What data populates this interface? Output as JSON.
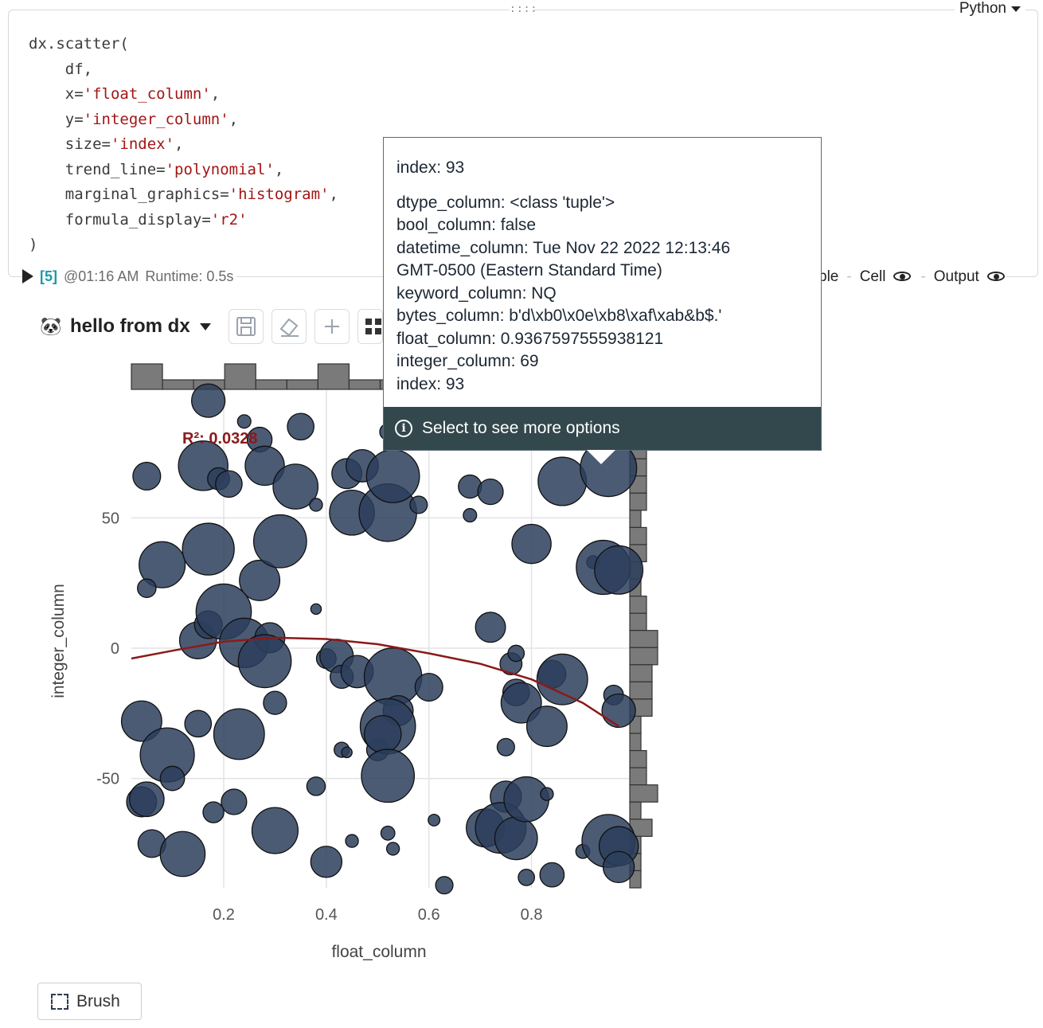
{
  "cell": {
    "language": "Python",
    "drag_handle": "::::",
    "code_lines": [
      [
        {
          "t": "dx.scatter("
        }
      ],
      [
        {
          "t": "    df,"
        }
      ],
      [
        {
          "t": "    x="
        },
        {
          "s": "'float_column'"
        },
        {
          "t": ","
        }
      ],
      [
        {
          "t": "    y="
        },
        {
          "s": "'integer_column'"
        },
        {
          "t": ","
        }
      ],
      [
        {
          "t": "    size="
        },
        {
          "s": "'index'"
        },
        {
          "t": ","
        }
      ],
      [
        {
          "t": "    trend_line="
        },
        {
          "s": "'polynomial'"
        },
        {
          "t": ","
        }
      ],
      [
        {
          "t": "    marginal_graphics="
        },
        {
          "s": "'histogram'"
        },
        {
          "t": ","
        }
      ],
      [
        {
          "t": "    formula_display="
        },
        {
          "s": "'r2'"
        }
      ],
      [
        {
          "t": ")"
        }
      ]
    ],
    "exec_count": "[5]",
    "exec_time": "@01:16 AM",
    "runtime": "Runtime: 0.5s",
    "right_partial": "ble",
    "cell_label": "Cell",
    "output_label": "Output"
  },
  "dx_toolbar": {
    "title": "hello from dx",
    "panda_icon": "🐼"
  },
  "tooltip": {
    "header": "index: 93",
    "lines": [
      "dtype_column: <class 'tuple'>",
      "bool_column: false",
      "datetime_column: Tue Nov 22 2022 12:13:46",
      "GMT-0500 (Eastern Standard Time)",
      "keyword_column: NQ",
      "bytes_column: b'd\\xb0\\x0e\\xb8\\xaf\\xab&b$.'",
      "float_column: 0.9367597555938121",
      "integer_column: 69",
      "index: 93"
    ],
    "footer": "Select to see more options"
  },
  "brush_label": "Brush",
  "colors": {
    "point_fill": "#2c3e5c",
    "trend": "#8b1a1a",
    "histogram": "#777777"
  },
  "chart_data": {
    "type": "scatter",
    "xlabel": "float_column",
    "ylabel": "integer_column",
    "xlim": [
      0.02,
      0.99
    ],
    "ylim": [
      -92,
      99
    ],
    "xticks": [
      "0.2",
      "0.4",
      "0.6",
      "0.8"
    ],
    "yticks": [
      "50",
      "0",
      "-50"
    ],
    "r2_annotation": "R²: 0.0328",
    "trend": {
      "x": [
        0.02,
        0.1,
        0.2,
        0.3,
        0.4,
        0.5,
        0.6,
        0.7,
        0.8,
        0.9,
        0.97
      ],
      "y": [
        -4,
        -1,
        2.5,
        4,
        3.5,
        1.5,
        -2,
        -6,
        -12,
        -21,
        -30
      ]
    },
    "points": [
      {
        "x": 0.17,
        "y": 95,
        "s": 50
      },
      {
        "x": 0.24,
        "y": 87,
        "s": 15
      },
      {
        "x": 0.27,
        "y": 80,
        "s": 35
      },
      {
        "x": 0.35,
        "y": 85,
        "s": 38
      },
      {
        "x": 0.52,
        "y": 83,
        "s": 20
      },
      {
        "x": 0.05,
        "y": 66,
        "s": 40
      },
      {
        "x": 0.16,
        "y": 70,
        "s": 78
      },
      {
        "x": 0.19,
        "y": 65,
        "s": 30
      },
      {
        "x": 0.21,
        "y": 63,
        "s": 38
      },
      {
        "x": 0.28,
        "y": 70,
        "s": 60
      },
      {
        "x": 0.34,
        "y": 62,
        "s": 70
      },
      {
        "x": 0.38,
        "y": 55,
        "s": 14
      },
      {
        "x": 0.44,
        "y": 67,
        "s": 44
      },
      {
        "x": 0.47,
        "y": 70,
        "s": 48
      },
      {
        "x": 0.45,
        "y": 52,
        "s": 70
      },
      {
        "x": 0.52,
        "y": 52,
        "s": 92
      },
      {
        "x": 0.53,
        "y": 66,
        "s": 84
      },
      {
        "x": 0.58,
        "y": 55,
        "s": 22
      },
      {
        "x": 0.68,
        "y": 62,
        "s": 32
      },
      {
        "x": 0.72,
        "y": 60,
        "s": 36
      },
      {
        "x": 0.68,
        "y": 51,
        "s": 15
      },
      {
        "x": 0.86,
        "y": 64,
        "s": 76
      },
      {
        "x": 0.95,
        "y": 69,
        "s": 90
      },
      {
        "x": 0.08,
        "y": 32,
        "s": 72
      },
      {
        "x": 0.05,
        "y": 23,
        "s": 24
      },
      {
        "x": 0.17,
        "y": 38,
        "s": 82
      },
      {
        "x": 0.27,
        "y": 26,
        "s": 62
      },
      {
        "x": 0.31,
        "y": 41,
        "s": 84
      },
      {
        "x": 0.8,
        "y": 40,
        "s": 60
      },
      {
        "x": 0.92,
        "y": 33,
        "s": 14
      },
      {
        "x": 0.94,
        "y": 31,
        "s": 86
      },
      {
        "x": 0.97,
        "y": 30,
        "s": 76
      },
      {
        "x": 0.38,
        "y": 15,
        "s": 10
      },
      {
        "x": 0.15,
        "y": 3,
        "s": 56
      },
      {
        "x": 0.17,
        "y": 9,
        "s": 40
      },
      {
        "x": 0.2,
        "y": 14,
        "s": 88
      },
      {
        "x": 0.24,
        "y": 2,
        "s": 78
      },
      {
        "x": 0.29,
        "y": 4,
        "s": 44
      },
      {
        "x": 0.28,
        "y": -5,
        "s": 84
      },
      {
        "x": 0.4,
        "y": -4,
        "s": 26
      },
      {
        "x": 0.42,
        "y": -3,
        "s": 50
      },
      {
        "x": 0.43,
        "y": -11,
        "s": 32
      },
      {
        "x": 0.46,
        "y": -9,
        "s": 48
      },
      {
        "x": 0.53,
        "y": -11,
        "s": 92
      },
      {
        "x": 0.6,
        "y": -15,
        "s": 40
      },
      {
        "x": 0.72,
        "y": 8,
        "s": 44
      },
      {
        "x": 0.76,
        "y": -6,
        "s": 30
      },
      {
        "x": 0.77,
        "y": -2,
        "s": 20
      },
      {
        "x": 0.77,
        "y": -17,
        "s": 38
      },
      {
        "x": 0.78,
        "y": -21,
        "s": 62
      },
      {
        "x": 0.84,
        "y": -10,
        "s": 40
      },
      {
        "x": 0.86,
        "y": -12,
        "s": 80
      },
      {
        "x": 0.96,
        "y": -18,
        "s": 26
      },
      {
        "x": 0.97,
        "y": -24,
        "s": 50
      },
      {
        "x": 0.83,
        "y": -30,
        "s": 62
      },
      {
        "x": 0.3,
        "y": -21,
        "s": 32
      },
      {
        "x": 0.04,
        "y": -28,
        "s": 62
      },
      {
        "x": 0.09,
        "y": -41,
        "s": 86
      },
      {
        "x": 0.1,
        "y": -50,
        "s": 34
      },
      {
        "x": 0.15,
        "y": -29,
        "s": 38
      },
      {
        "x": 0.23,
        "y": -33,
        "s": 80
      },
      {
        "x": 0.38,
        "y": -53,
        "s": 24
      },
      {
        "x": 0.43,
        "y": -39,
        "s": 18
      },
      {
        "x": 0.44,
        "y": -40,
        "s": 10
      },
      {
        "x": 0.5,
        "y": -39,
        "s": 30
      },
      {
        "x": 0.54,
        "y": -24,
        "s": 44
      },
      {
        "x": 0.52,
        "y": -30,
        "s": 88
      },
      {
        "x": 0.51,
        "y": -33,
        "s": 56
      },
      {
        "x": 0.52,
        "y": -49,
        "s": 84
      },
      {
        "x": 0.04,
        "y": -59,
        "s": 44
      },
      {
        "x": 0.05,
        "y": -58,
        "s": 52
      },
      {
        "x": 0.06,
        "y": -75,
        "s": 40
      },
      {
        "x": 0.12,
        "y": -79,
        "s": 70
      },
      {
        "x": 0.18,
        "y": -63,
        "s": 28
      },
      {
        "x": 0.22,
        "y": -59,
        "s": 36
      },
      {
        "x": 0.3,
        "y": -70,
        "s": 72
      },
      {
        "x": 0.4,
        "y": -82,
        "s": 46
      },
      {
        "x": 0.45,
        "y": -74,
        "s": 14
      },
      {
        "x": 0.52,
        "y": -71,
        "s": 16
      },
      {
        "x": 0.53,
        "y": -77,
        "s": 14
      },
      {
        "x": 0.61,
        "y": -66,
        "s": 12
      },
      {
        "x": 0.63,
        "y": -91,
        "s": 22
      },
      {
        "x": 0.71,
        "y": -69,
        "s": 58
      },
      {
        "x": 0.75,
        "y": -57,
        "s": 46
      },
      {
        "x": 0.74,
        "y": -69,
        "s": 80
      },
      {
        "x": 0.77,
        "y": -73,
        "s": 66
      },
      {
        "x": 0.79,
        "y": -58,
        "s": 70
      },
      {
        "x": 0.79,
        "y": -88,
        "s": 20
      },
      {
        "x": 0.83,
        "y": -56,
        "s": 14
      },
      {
        "x": 0.84,
        "y": -87,
        "s": 34
      },
      {
        "x": 0.9,
        "y": -78,
        "s": 16
      },
      {
        "x": 0.95,
        "y": -74,
        "s": 84
      },
      {
        "x": 0.97,
        "y": -76,
        "s": 60
      },
      {
        "x": 0.97,
        "y": -84,
        "s": 46
      },
      {
        "x": 0.75,
        "y": -38,
        "s": 22
      }
    ],
    "hist_x": [
      8,
      3,
      3,
      8,
      3,
      3,
      8,
      3,
      3,
      3,
      3,
      3,
      9,
      3,
      3,
      3
    ],
    "hist_y": [
      2,
      3,
      5,
      3,
      3,
      3,
      3,
      2,
      3,
      3,
      2,
      2,
      3,
      3,
      5,
      5,
      4,
      4,
      4,
      2,
      2,
      3,
      3,
      5,
      2,
      4,
      2,
      2,
      2
    ]
  }
}
